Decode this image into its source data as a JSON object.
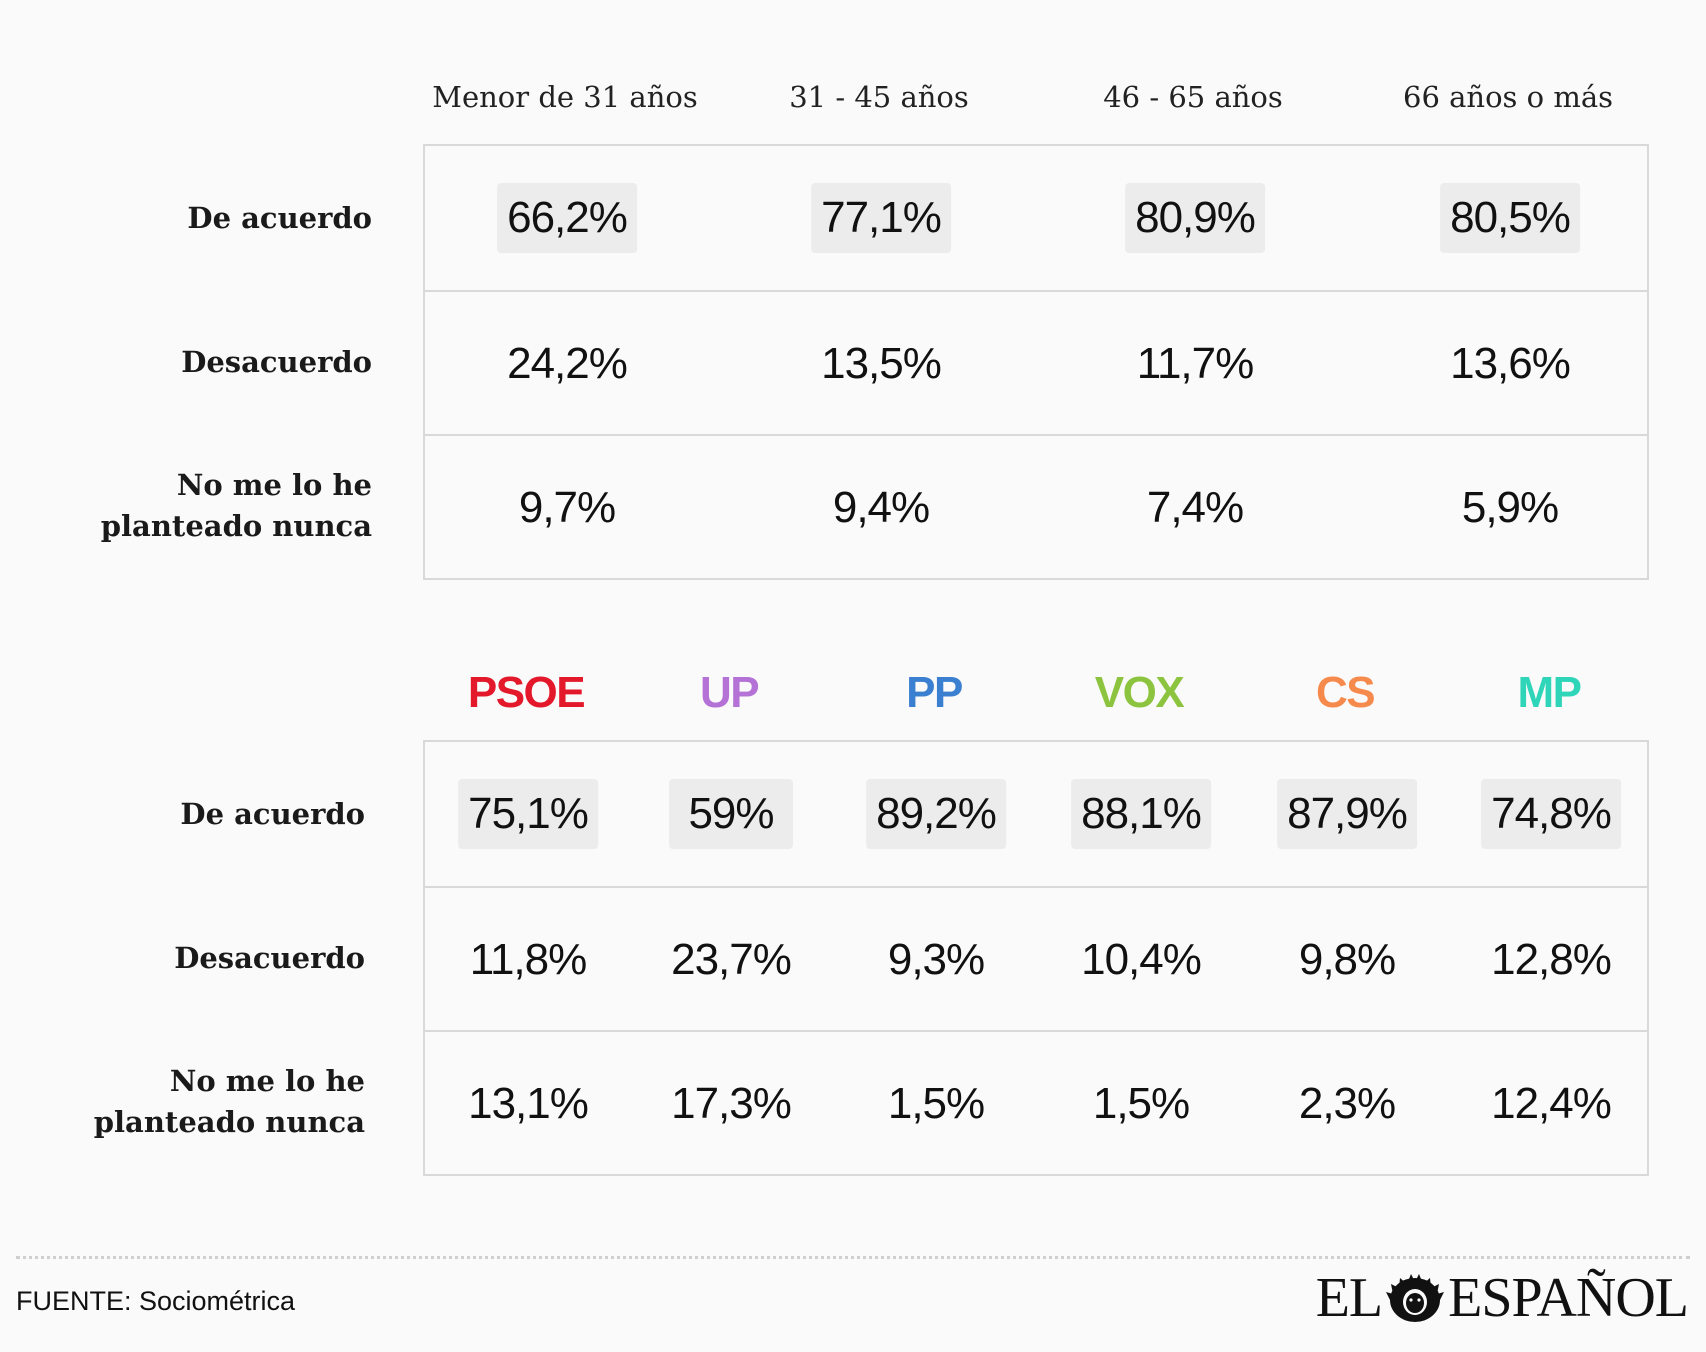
{
  "chart_data": [
    {
      "type": "table",
      "categories": [
        "Menor de 31 años",
        "31 - 45 años",
        "46 - 65 años",
        "66 años o más"
      ],
      "rows": [
        {
          "label": "De acuerdo",
          "values": [
            "66,2%",
            "77,1%",
            "80,9%",
            "80,5%"
          ],
          "highlight": true
        },
        {
          "label": "Desacuerdo",
          "values": [
            "24,2%",
            "13,5%",
            "11,7%",
            "13,6%"
          ],
          "highlight": false
        },
        {
          "label": "No me lo he planteado nunca",
          "label_lines": [
            "No me lo he",
            "planteado nunca"
          ],
          "values": [
            "9,7%",
            "9,4%",
            "7,4%",
            "5,9%"
          ],
          "highlight": false
        }
      ]
    },
    {
      "type": "table",
      "categories": [
        "PSOE",
        "UP",
        "PP",
        "VOX",
        "CS",
        "MP"
      ],
      "category_colors": [
        "#e3182a",
        "#b572d6",
        "#3b7fd1",
        "#8cc43f",
        "#f58a4c",
        "#2fd5b8"
      ],
      "rows": [
        {
          "label": "De acuerdo",
          "values": [
            "75,1%",
            "59%",
            "89,2%",
            "88,1%",
            "87,9%",
            "74,8%"
          ],
          "highlight": true
        },
        {
          "label": "Desacuerdo",
          "values": [
            "11,8%",
            "23,7%",
            "9,3%",
            "10,4%",
            "9,8%",
            "12,8%"
          ],
          "highlight": false
        },
        {
          "label": "No me lo he planteado nunca",
          "label_lines": [
            "No me lo he",
            "planteado nunca"
          ],
          "values": [
            "13,1%",
            "17,3%",
            "1,5%",
            "1,5%",
            "2,3%",
            "12,4%"
          ],
          "highlight": false
        }
      ]
    }
  ],
  "footer": {
    "source": "FUENTE: Sociométrica",
    "brand_left": "EL",
    "brand_right": "ESPAÑOL",
    "brand_icon": "lion-head-icon"
  },
  "colors": {
    "background": "#fafafa",
    "highlight": "#ececec",
    "border": "#d9d9d9"
  }
}
